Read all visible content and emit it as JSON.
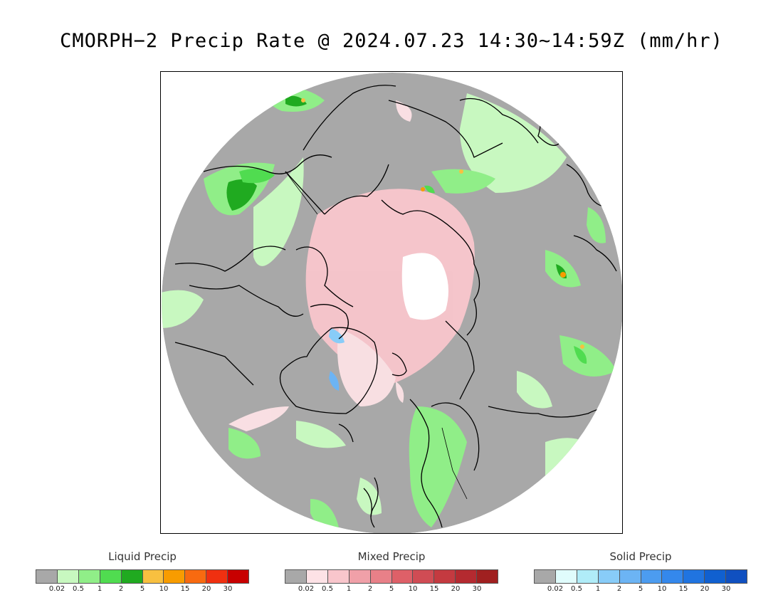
{
  "title": "CMORPH−2 Precip Rate @ 2024.07.23 14:30~14:59Z (mm/hr)",
  "colors": {
    "background_no_precip": "#a8a8a8",
    "no_data": "#ffffff",
    "coastline": "#000000"
  },
  "legends": [
    {
      "title": "Liquid Precip",
      "colors": [
        "#a8a8a8",
        "#c8f8c0",
        "#90ee88",
        "#50dc50",
        "#20aa20",
        "#f8c040",
        "#f89c00",
        "#f86a10",
        "#f03010",
        "#c80000"
      ],
      "ticks": [
        "0.02",
        "0.5",
        "1",
        "2",
        "5",
        "10",
        "15",
        "20",
        "30"
      ]
    },
    {
      "title": "Mixed Precip",
      "colors": [
        "#a8a8a8",
        "#fde2e6",
        "#f9c6cc",
        "#f0a0a8",
        "#e88088",
        "#de6068",
        "#d04c54",
        "#c43a40",
        "#b42a30",
        "#a02020"
      ],
      "ticks": [
        "0.02",
        "0.5",
        "1",
        "2",
        "5",
        "10",
        "15",
        "20",
        "30"
      ]
    },
    {
      "title": "Solid Precip",
      "colors": [
        "#a8a8a8",
        "#e0fcfc",
        "#b0ecf8",
        "#88ccf8",
        "#6cb4f4",
        "#4c9cf0",
        "#3488ec",
        "#2074e0",
        "#1060d0",
        "#1050c0"
      ],
      "ticks": [
        "0.02",
        "0.5",
        "1",
        "2",
        "5",
        "10",
        "15",
        "20",
        "30"
      ]
    }
  ]
}
